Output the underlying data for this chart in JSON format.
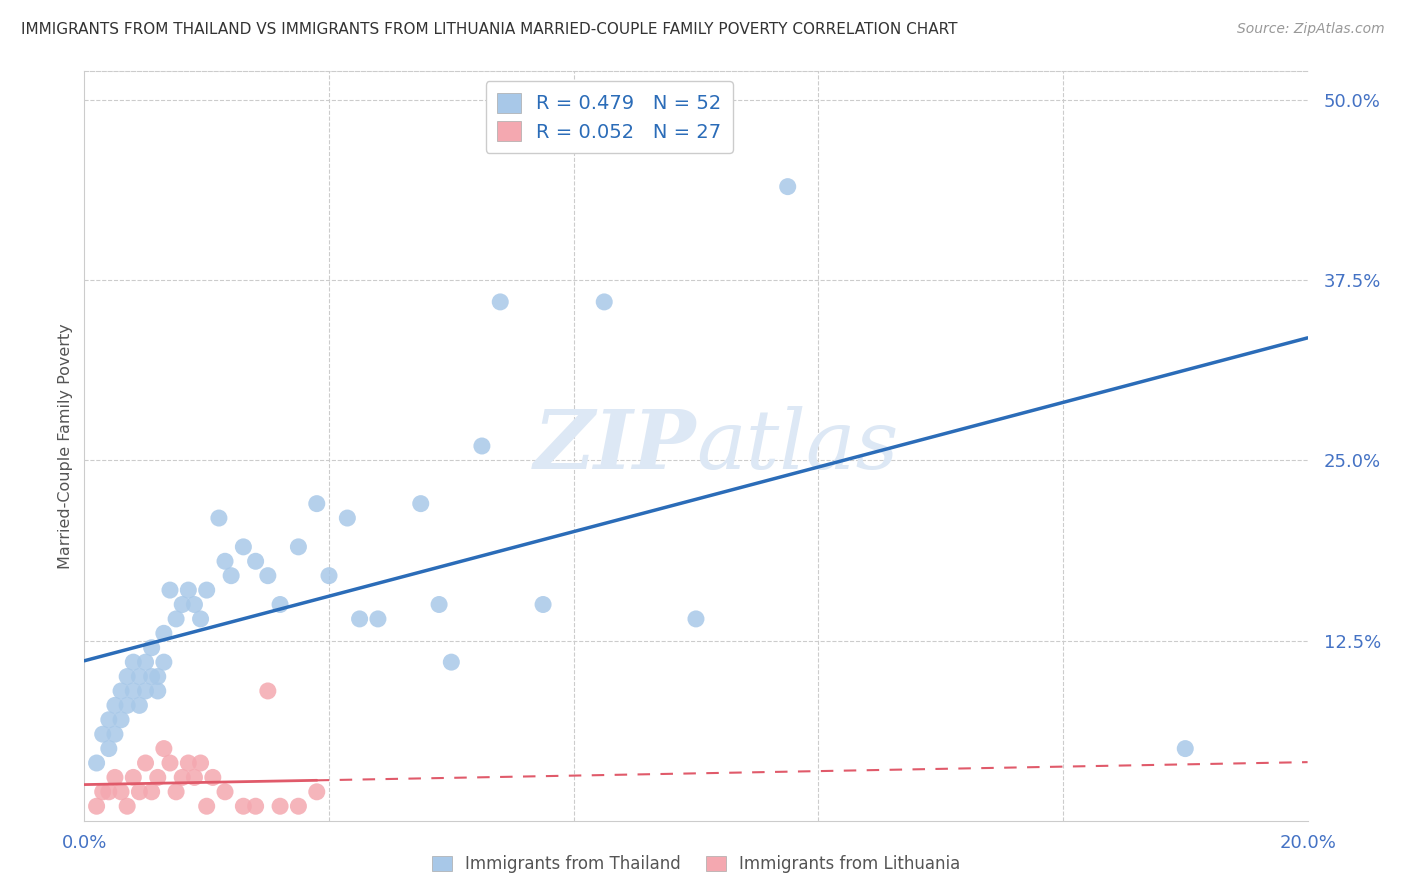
{
  "title": "IMMIGRANTS FROM THAILAND VS IMMIGRANTS FROM LITHUANIA MARRIED-COUPLE FAMILY POVERTY CORRELATION CHART",
  "source": "Source: ZipAtlas.com",
  "ylabel": "Married-Couple Family Poverty",
  "xlim": [
    0.0,
    0.2
  ],
  "ylim": [
    -0.02,
    0.52
  ],
  "thailand_R": 0.479,
  "thailand_N": 52,
  "lithuania_R": 0.052,
  "lithuania_N": 27,
  "thailand_color": "#a8c8e8",
  "lithuania_color": "#f4a8b0",
  "line_thailand_color": "#2b6cb8",
  "line_lithuania_color": "#e05a6a",
  "legend_text_color": "#2b6cb8",
  "ytick_color": "#4472c4",
  "xtick_color": "#4472c4",
  "watermark_color": "#dde8f5",
  "thailand_x": [
    0.002,
    0.003,
    0.004,
    0.004,
    0.005,
    0.005,
    0.006,
    0.006,
    0.007,
    0.007,
    0.008,
    0.008,
    0.009,
    0.009,
    0.01,
    0.01,
    0.011,
    0.011,
    0.012,
    0.012,
    0.013,
    0.013,
    0.014,
    0.015,
    0.016,
    0.017,
    0.018,
    0.019,
    0.02,
    0.022,
    0.023,
    0.024,
    0.026,
    0.028,
    0.03,
    0.032,
    0.035,
    0.038,
    0.04,
    0.043,
    0.045,
    0.048,
    0.055,
    0.058,
    0.06,
    0.065,
    0.068,
    0.075,
    0.085,
    0.1,
    0.115,
    0.18
  ],
  "thailand_y": [
    0.04,
    0.06,
    0.07,
    0.05,
    0.08,
    0.06,
    0.07,
    0.09,
    0.08,
    0.1,
    0.09,
    0.11,
    0.1,
    0.08,
    0.09,
    0.11,
    0.1,
    0.12,
    0.1,
    0.09,
    0.11,
    0.13,
    0.16,
    0.14,
    0.15,
    0.16,
    0.15,
    0.14,
    0.16,
    0.21,
    0.18,
    0.17,
    0.19,
    0.18,
    0.17,
    0.15,
    0.19,
    0.22,
    0.17,
    0.21,
    0.14,
    0.14,
    0.22,
    0.15,
    0.11,
    0.26,
    0.36,
    0.15,
    0.36,
    0.14,
    0.44,
    0.05
  ],
  "lithuania_x": [
    0.002,
    0.003,
    0.004,
    0.005,
    0.006,
    0.007,
    0.008,
    0.009,
    0.01,
    0.011,
    0.012,
    0.013,
    0.014,
    0.015,
    0.016,
    0.017,
    0.018,
    0.019,
    0.02,
    0.021,
    0.023,
    0.026,
    0.028,
    0.03,
    0.032,
    0.035,
    0.038
  ],
  "lithuania_y": [
    0.01,
    0.02,
    0.02,
    0.03,
    0.02,
    0.01,
    0.03,
    0.02,
    0.04,
    0.02,
    0.03,
    0.05,
    0.04,
    0.02,
    0.03,
    0.04,
    0.03,
    0.04,
    0.01,
    0.03,
    0.02,
    0.01,
    0.01,
    0.09,
    0.01,
    0.01,
    0.02
  ],
  "ytick_vals": [
    0.0,
    0.125,
    0.25,
    0.375,
    0.5
  ],
  "ytick_labs": [
    "",
    "12.5%",
    "25.0%",
    "37.5%",
    "50.0%"
  ],
  "xtick_vals": [
    0.0,
    0.04,
    0.08,
    0.12,
    0.16,
    0.2
  ],
  "xtick_labs": [
    "0.0%",
    "",
    "",
    "",
    "",
    "20.0%"
  ]
}
